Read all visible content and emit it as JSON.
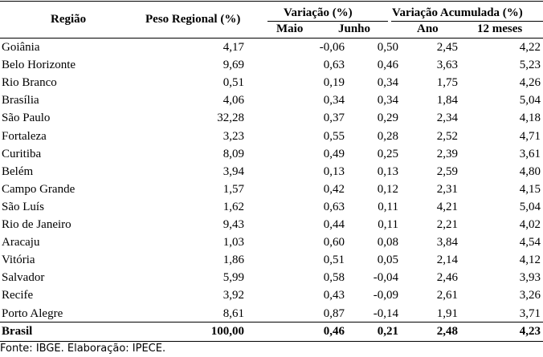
{
  "headers": {
    "regiao": "Região",
    "peso": "Peso Regional (%)",
    "variacao": "Variação (%)",
    "variacao_acumulada": "Variação Acumulada (%)",
    "maio": "Maio",
    "junho": "Junho",
    "ano": "Ano",
    "meses12": "12 meses"
  },
  "rows": [
    {
      "regiao": "Goiânia",
      "peso": "4,17",
      "maio": "-0,06",
      "junho": "0,50",
      "ano": "2,45",
      "meses12": "4,22"
    },
    {
      "regiao": "Belo Horizonte",
      "peso": "9,69",
      "maio": "0,63",
      "junho": "0,46",
      "ano": "3,63",
      "meses12": "5,23"
    },
    {
      "regiao": "Rio Branco",
      "peso": "0,51",
      "maio": "0,19",
      "junho": "0,34",
      "ano": "1,75",
      "meses12": "4,26"
    },
    {
      "regiao": "Brasília",
      "peso": "4,06",
      "maio": "0,34",
      "junho": "0,34",
      "ano": "1,84",
      "meses12": "5,04"
    },
    {
      "regiao": "São Paulo",
      "peso": "32,28",
      "maio": "0,37",
      "junho": "0,29",
      "ano": "2,34",
      "meses12": "4,18"
    },
    {
      "regiao": "Fortaleza",
      "peso": "3,23",
      "maio": "0,55",
      "junho": "0,28",
      "ano": "2,52",
      "meses12": "4,71"
    },
    {
      "regiao": "Curitiba",
      "peso": "8,09",
      "maio": "0,49",
      "junho": "0,25",
      "ano": "2,39",
      "meses12": "3,61"
    },
    {
      "regiao": "Belém",
      "peso": "3,94",
      "maio": "0,13",
      "junho": "0,13",
      "ano": "2,59",
      "meses12": "4,80"
    },
    {
      "regiao": "Campo Grande",
      "peso": "1,57",
      "maio": "0,42",
      "junho": "0,12",
      "ano": "2,31",
      "meses12": "4,15"
    },
    {
      "regiao": "São Luís",
      "peso": "1,62",
      "maio": "0,63",
      "junho": "0,11",
      "ano": "4,21",
      "meses12": "5,04"
    },
    {
      "regiao": "Rio de Janeiro",
      "peso": "9,43",
      "maio": "0,44",
      "junho": "0,11",
      "ano": "2,21",
      "meses12": "4,02"
    },
    {
      "regiao": "Aracaju",
      "peso": "1,03",
      "maio": "0,60",
      "junho": "0,08",
      "ano": "3,84",
      "meses12": "4,54"
    },
    {
      "regiao": "Vitória",
      "peso": "1,86",
      "maio": "0,51",
      "junho": "0,05",
      "ano": "2,14",
      "meses12": "4,12"
    },
    {
      "regiao": "Salvador",
      "peso": "5,99",
      "maio": "0,58",
      "junho": "-0,04",
      "ano": "2,46",
      "meses12": "3,93"
    },
    {
      "regiao": "Recife",
      "peso": "3,92",
      "maio": "0,43",
      "junho": "-0,09",
      "ano": "2,61",
      "meses12": "3,26"
    },
    {
      "regiao": "Porto Alegre",
      "peso": "8,61",
      "maio": "0,87",
      "junho": "-0,14",
      "ano": "1,91",
      "meses12": "3,71"
    }
  ],
  "total": {
    "regiao": "Brasil",
    "peso": "100,00",
    "maio": "0,46",
    "junho": "0,21",
    "ano": "2,48",
    "meses12": "4,23"
  },
  "source": "Fonte: IBGE. Elaboração: IPECE."
}
